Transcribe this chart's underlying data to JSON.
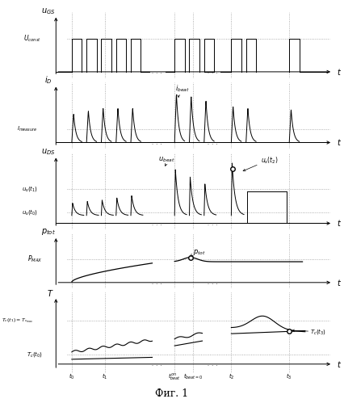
{
  "title": "Фиг. 1",
  "background_color": "#ffffff",
  "line_color": "#000000",
  "figsize": [
    4.26,
    4.99
  ],
  "dpi": 100,
  "t0": 0.05,
  "t1": 0.175,
  "t_beat_on": 0.44,
  "t_beat_off": 0.51,
  "t2": 0.655,
  "t3": 0.875,
  "panel_heights": [
    1.0,
    1.0,
    1.15,
    0.85,
    1.2
  ]
}
